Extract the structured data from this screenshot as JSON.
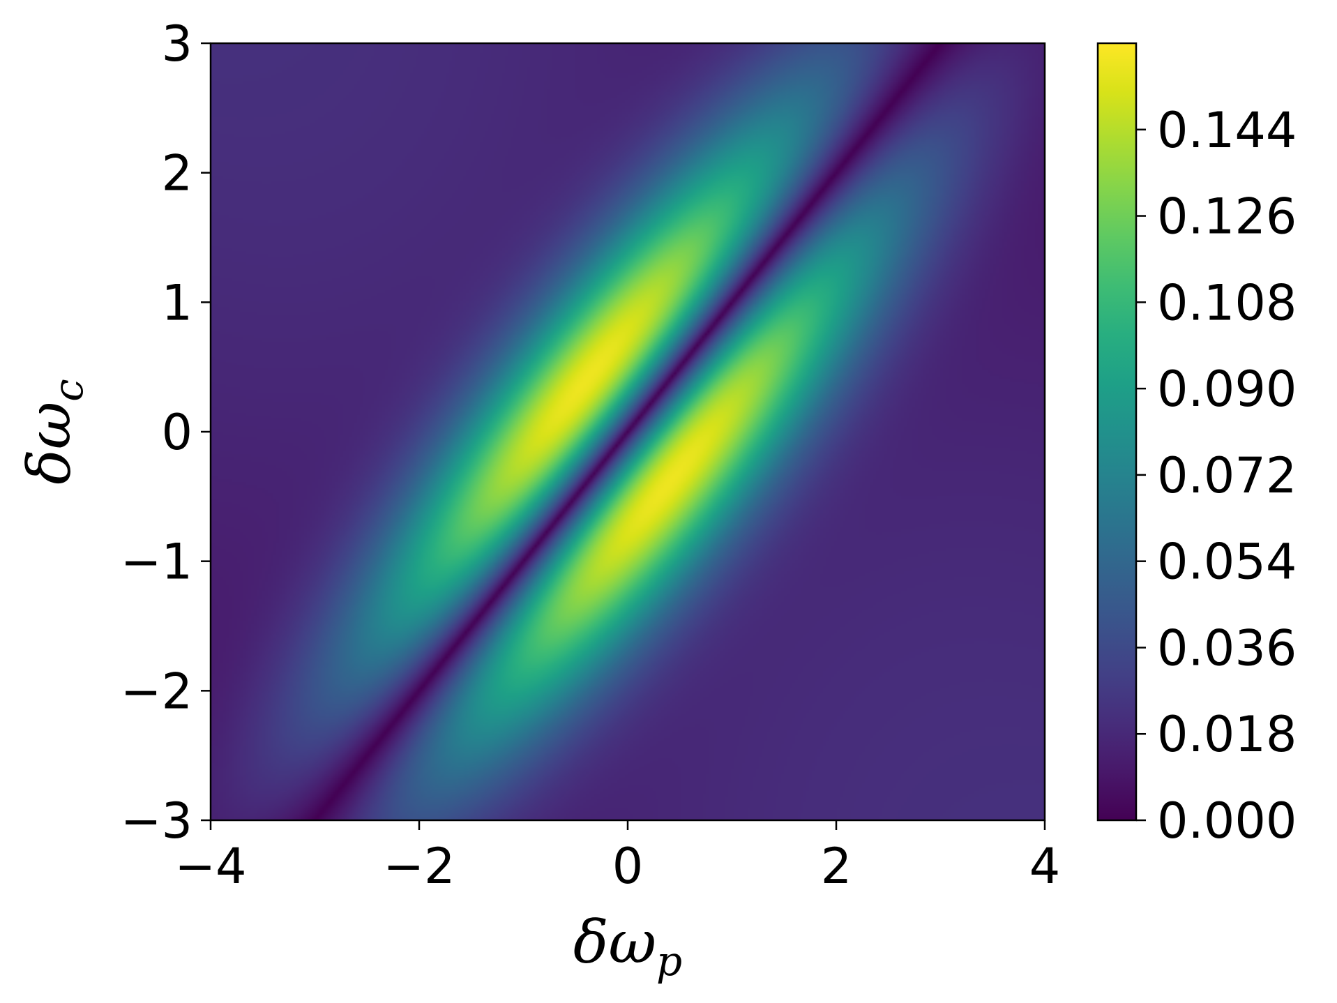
{
  "chart_data": {
    "type": "heatmap",
    "title": "",
    "xlabel": {
      "base": "δω",
      "sub": "p"
    },
    "ylabel": {
      "base": "δω",
      "sub": "c"
    },
    "xlim": [
      -4,
      4
    ],
    "ylim": [
      -3,
      3
    ],
    "x_ticks": [
      -4,
      -2,
      0,
      2,
      4
    ],
    "x_tick_labels": [
      "−4",
      "−2",
      "0",
      "2",
      "4"
    ],
    "y_ticks": [
      -3,
      -2,
      -1,
      0,
      1,
      2,
      3
    ],
    "y_tick_labels": [
      "−3",
      "−2",
      "−1",
      "0",
      "1",
      "2",
      "3"
    ],
    "colormap": "viridis",
    "colorbar": {
      "min": 0.0,
      "max": 0.162,
      "ticks": [
        0.0,
        0.018,
        0.036,
        0.054,
        0.072,
        0.09,
        0.108,
        0.126,
        0.144
      ],
      "tick_labels": [
        "0.000",
        "0.018",
        "0.036",
        "0.054",
        "0.072",
        "0.090",
        "0.108",
        "0.126",
        "0.144"
      ]
    },
    "features": {
      "zero_line": {
        "from": [
          -3,
          -3
        ],
        "to": [
          3,
          3
        ],
        "value": 0.0
      },
      "peaks": [
        {
          "x": -0.55,
          "y": 0.55,
          "value": 0.158
        },
        {
          "x": 0.55,
          "y": -0.55,
          "value": 0.158
        }
      ]
    },
    "grid": false
  }
}
